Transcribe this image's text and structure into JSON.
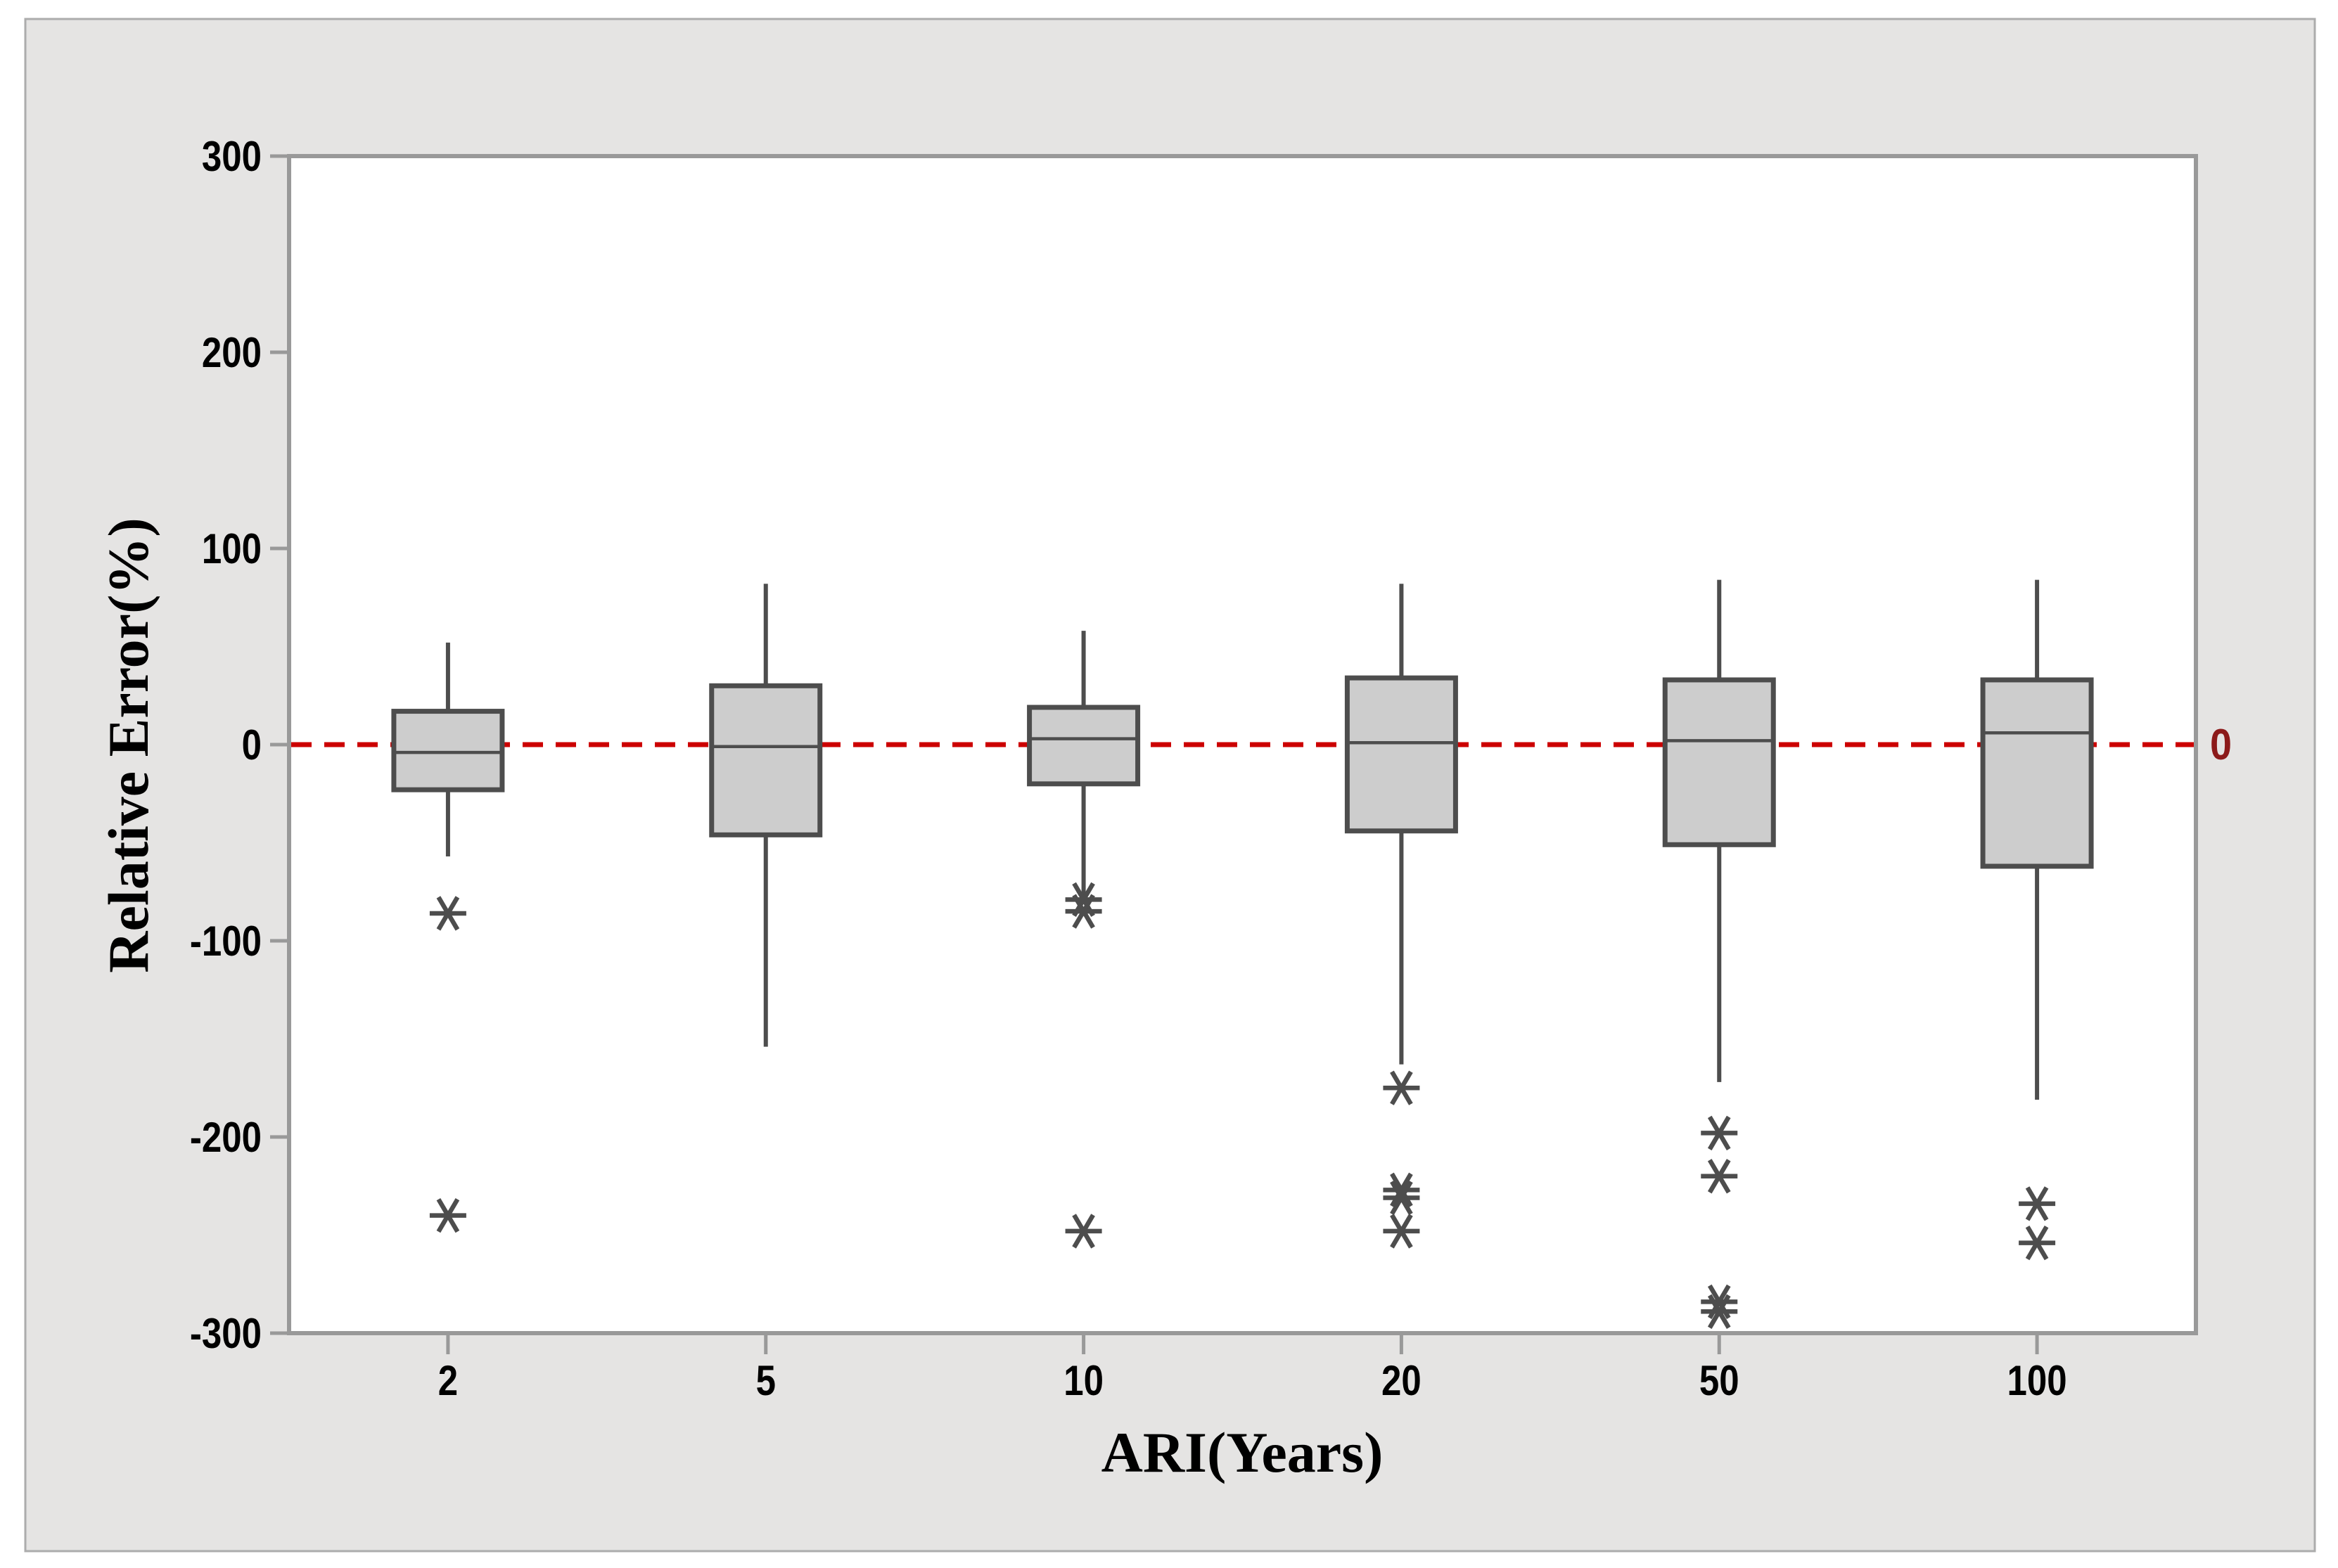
{
  "figure": {
    "background": "#E5E4E3",
    "border_color": "#ACACAC",
    "plot_background": "#FFFFFF",
    "frame_color": "#999999"
  },
  "chart_data": {
    "type": "boxplot",
    "title": "",
    "xlabel": "ARI(Years)",
    "ylabel": "Relative Error(%)",
    "categories": [
      "2",
      "5",
      "10",
      "20",
      "50",
      "100"
    ],
    "y_axis": {
      "min": -300,
      "max": 300,
      "tick_interval": 100,
      "ticks": [
        300,
        200,
        100,
        0,
        -100,
        -200,
        -300
      ],
      "tick_labels": [
        "300",
        "200",
        "100",
        "0",
        "-100",
        "-200",
        "-300"
      ]
    },
    "grid": "off",
    "legend": "none",
    "reference_line": {
      "value": 0,
      "label": "0",
      "style": "dashed",
      "line_color": "#CC0000",
      "label_color": "#8C1A1A"
    },
    "box_style": {
      "fill": "#CDCDCD",
      "stroke": "#4D4D4D",
      "outlier_symbol": "asterisk"
    },
    "boxes": [
      {
        "category": "2",
        "whisker_low": -57,
        "q1": -23,
        "median": -4,
        "q3": 17,
        "whisker_high": 52,
        "outliers": [
          -86,
          -240
        ]
      },
      {
        "category": "5",
        "whisker_low": -154,
        "q1": -46,
        "median": -1,
        "q3": 30,
        "whisker_high": 82,
        "outliers": []
      },
      {
        "category": "10",
        "whisker_low": -78,
        "q1": -20,
        "median": 3,
        "q3": 19,
        "whisker_high": 58,
        "outliers": [
          -79,
          -85,
          -248
        ]
      },
      {
        "category": "20",
        "whisker_low": -163,
        "q1": -44,
        "median": 1,
        "q3": 34,
        "whisker_high": 82,
        "outliers": [
          -175,
          -227,
          -231,
          -248
        ]
      },
      {
        "category": "50",
        "whisker_low": -172,
        "q1": -51,
        "median": 2,
        "q3": 33,
        "whisker_high": 84,
        "outliers": [
          -198,
          -220,
          -284,
          -289
        ]
      },
      {
        "category": "100",
        "whisker_low": -181,
        "q1": -62,
        "median": 6,
        "q3": 33,
        "whisker_high": 84,
        "outliers": [
          -234,
          -254
        ]
      }
    ]
  }
}
